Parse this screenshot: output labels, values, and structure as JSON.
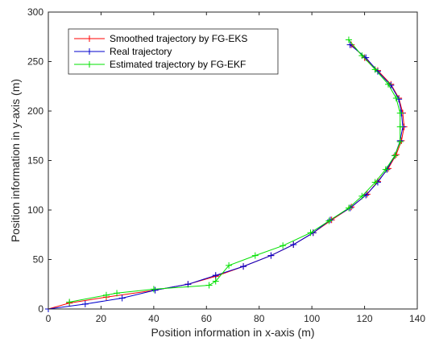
{
  "chart_data": {
    "type": "line",
    "title": "",
    "xlabel": "Position information in x-axis (m)",
    "ylabel": "Position information in y-axis (m)",
    "xlim": [
      0,
      140
    ],
    "ylim": [
      0,
      300
    ],
    "xticks": [
      "0",
      "20",
      "40",
      "60",
      "80",
      "100",
      "120",
      "140"
    ],
    "yticks": [
      "0",
      "50",
      "100",
      "150",
      "200",
      "250",
      "300"
    ],
    "grid": false,
    "legend_position": "top-left",
    "series": [
      {
        "name": "Smoothed trajectory by FG-EKS",
        "color": "#ff0000",
        "marker": "+",
        "x": [
          0,
          8,
          22,
          40.5,
          53,
          63.5,
          74,
          84.5,
          93,
          100.5,
          107.5,
          115,
          121,
          125,
          129,
          132,
          134,
          135,
          134.5,
          133,
          130,
          125,
          120,
          115
        ],
        "y": [
          0,
          6,
          12,
          19,
          25,
          33,
          43,
          54,
          65,
          77,
          90,
          103,
          116,
          129,
          142,
          156,
          170,
          184,
          198,
          213,
          227,
          241,
          254,
          267
        ]
      },
      {
        "name": "Real trajectory",
        "color": "#0000cc",
        "marker": "+",
        "x": [
          0,
          14,
          28,
          40.5,
          53,
          63.5,
          74,
          84.5,
          93,
          100.5,
          107,
          114.5,
          120.5,
          125,
          128.5,
          131.5,
          133.5,
          134.5,
          134,
          133,
          130,
          125,
          120.5,
          114.5
        ],
        "y": [
          0,
          5,
          11,
          19,
          25,
          34,
          43,
          54,
          65,
          77,
          90,
          102,
          115,
          128,
          141,
          155,
          170,
          184,
          198,
          212,
          226,
          240,
          254,
          267
        ]
      },
      {
        "name": "Estimated trajectory by FG-EKF",
        "color": "#00e000",
        "marker": "+",
        "x": [
          8,
          22,
          26,
          40,
          61,
          63.5,
          68.5,
          78.5,
          89,
          99.5,
          106.5,
          114,
          119,
          124,
          128,
          131.5,
          133.5,
          133.5,
          133.5,
          132,
          129,
          124,
          119,
          114
        ],
        "y": [
          7,
          14,
          16,
          20,
          24,
          28,
          44,
          54,
          64,
          77,
          89,
          102,
          114,
          128,
          141,
          155,
          169,
          184,
          198,
          213,
          227,
          242,
          256,
          272
        ]
      }
    ]
  }
}
